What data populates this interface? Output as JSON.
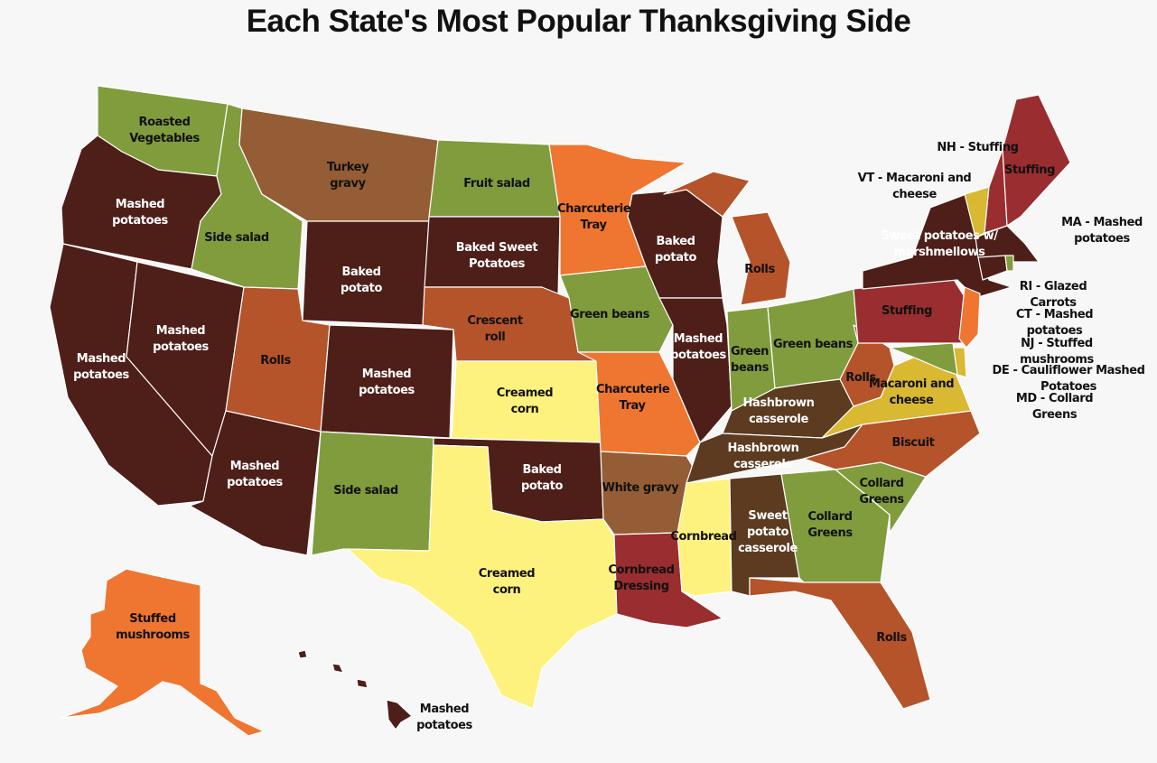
{
  "title": "Each State's Most Popular Thanksgiving Side",
  "colors": {
    "dark_brown": "#4e1e18",
    "medium_brown": "#945d35",
    "hashbrown_brown": "#5c3b20",
    "rust": "#b5532a",
    "orange": "#ef7630",
    "green": "#809c3d",
    "pale_yellow": "#fef27e",
    "mustard": "#d9b832",
    "red": "#992d2f"
  },
  "states": [
    {
      "abbr": "WA",
      "label": "Roasted Vegetables",
      "color": "green"
    },
    {
      "abbr": "OR",
      "label": "Mashed potatoes",
      "color": "dark_brown"
    },
    {
      "abbr": "CA",
      "label": "Mashed potatoes",
      "color": "dark_brown"
    },
    {
      "abbr": "NV",
      "label": "Mashed potatoes",
      "color": "dark_brown"
    },
    {
      "abbr": "ID",
      "label": "Side salad",
      "color": "green"
    },
    {
      "abbr": "MT",
      "label": "Turkey gravy",
      "color": "medium_brown"
    },
    {
      "abbr": "WY",
      "label": "Baked potato",
      "color": "dark_brown"
    },
    {
      "abbr": "UT",
      "label": "Rolls",
      "color": "rust"
    },
    {
      "abbr": "CO",
      "label": "Mashed potatoes",
      "color": "dark_brown"
    },
    {
      "abbr": "AZ",
      "label": "Mashed potatoes",
      "color": "dark_brown"
    },
    {
      "abbr": "NM",
      "label": "Side salad",
      "color": "green"
    },
    {
      "abbr": "ND",
      "label": "Fruit salad",
      "color": "green"
    },
    {
      "abbr": "SD",
      "label": "Baked Sweet Potatoes",
      "color": "dark_brown"
    },
    {
      "abbr": "NE",
      "label": "Crescent roll",
      "color": "rust"
    },
    {
      "abbr": "KS",
      "label": "Creamed corn",
      "color": "pale_yellow"
    },
    {
      "abbr": "OK",
      "label": "Baked potato",
      "color": "dark_brown"
    },
    {
      "abbr": "TX",
      "label": "Creamed corn",
      "color": "pale_yellow"
    },
    {
      "abbr": "MN",
      "label": "Charcuterie Tray",
      "color": "orange"
    },
    {
      "abbr": "IA",
      "label": "Green beans",
      "color": "green"
    },
    {
      "abbr": "MO",
      "label": "Charcuterie Tray",
      "color": "orange"
    },
    {
      "abbr": "AR",
      "label": "White gravy",
      "color": "medium_brown"
    },
    {
      "abbr": "LA",
      "label": "Cornbread Dressing",
      "color": "red"
    },
    {
      "abbr": "WI",
      "label": "Baked potato",
      "color": "dark_brown"
    },
    {
      "abbr": "IL",
      "label": "Mashed potatoes",
      "color": "dark_brown"
    },
    {
      "abbr": "MI",
      "label": "Rolls",
      "color": "rust"
    },
    {
      "abbr": "IN",
      "label": "Green beans",
      "color": "green"
    },
    {
      "abbr": "OH",
      "label": "Green beans",
      "color": "green"
    },
    {
      "abbr": "KY",
      "label": "Hashbrown casserole",
      "color": "hashbrown_brown"
    },
    {
      "abbr": "TN",
      "label": "Hashbrown casserole",
      "color": "hashbrown_brown"
    },
    {
      "abbr": "MS",
      "label": "Cornbread",
      "color": "pale_yellow"
    },
    {
      "abbr": "AL",
      "label": "Sweet potato casserole",
      "color": "hashbrown_brown"
    },
    {
      "abbr": "GA",
      "label": "Collard Greens",
      "color": "green"
    },
    {
      "abbr": "FL",
      "label": "Rolls",
      "color": "rust"
    },
    {
      "abbr": "SC",
      "label": "Collard Greens",
      "color": "green"
    },
    {
      "abbr": "NC",
      "label": "Biscuit",
      "color": "rust"
    },
    {
      "abbr": "VA",
      "label": "Macaroni and cheese",
      "color": "mustard"
    },
    {
      "abbr": "WV",
      "label": "Rolls",
      "color": "rust"
    },
    {
      "abbr": "PA",
      "label": "Stuffing",
      "color": "red"
    },
    {
      "abbr": "NY",
      "label": "Sweet potatoes w/ marshmellows",
      "color": "dark_brown"
    },
    {
      "abbr": "NJ",
      "label": "",
      "color": "orange"
    },
    {
      "abbr": "DE",
      "label": "",
      "color": "mustard"
    },
    {
      "abbr": "MD",
      "label": "",
      "color": "green"
    },
    {
      "abbr": "VT",
      "label": "",
      "color": "mustard"
    },
    {
      "abbr": "NH",
      "label": "",
      "color": "red"
    },
    {
      "abbr": "ME",
      "label": "Stuffing",
      "color": "red"
    },
    {
      "abbr": "MA",
      "label": "",
      "color": "dark_brown"
    },
    {
      "abbr": "CT",
      "label": "",
      "color": "dark_brown"
    },
    {
      "abbr": "RI",
      "label": "",
      "color": "green"
    },
    {
      "abbr": "AK",
      "label": "Stuffed mushrooms",
      "color": "orange"
    },
    {
      "abbr": "HI",
      "label": "Mashed potatoes",
      "color": "dark_brown"
    }
  ],
  "callouts": {
    "NH": "NH - Stuffing",
    "VT": "VT - Macaroni and cheese",
    "MA": "MA - Mashed potatoes",
    "RI": "RI - Glazed Carrots",
    "CT": "CT - Mashed potatoes",
    "NJ": "NJ - Stuffed mushrooms",
    "DE": "DE - Cauliflower Mashed Potatoes",
    "MD": "MD - Collard Greens"
  }
}
